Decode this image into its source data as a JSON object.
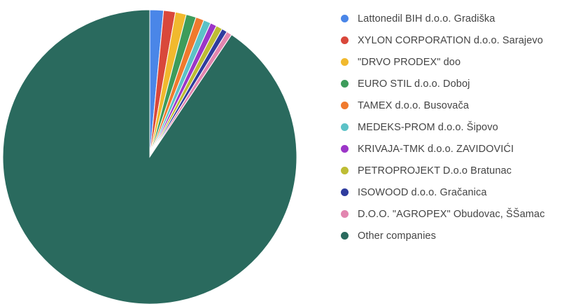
{
  "chart_data": {
    "type": "pie",
    "title": "",
    "legend_position": "right",
    "slices": [
      {
        "label": "Lattonedil BIH d.o.o. Gradiška",
        "value": 1.5,
        "color": "#4A86E8"
      },
      {
        "label": "XYLON CORPORATION d.o.o. Sarajevo",
        "value": 1.3,
        "color": "#D9483B"
      },
      {
        "label": "\"DRVO PRODEX\" doo",
        "value": 1.2,
        "color": "#F1B92E"
      },
      {
        "label": "EURO STIL d.o.o. Doboj",
        "value": 1.1,
        "color": "#3D9C5B"
      },
      {
        "label": "TAMEX d.o.o. Busovača",
        "value": 0.9,
        "color": "#F07A2E"
      },
      {
        "label": "MEDEKS-PROM d.o.o. Šipovo",
        "value": 0.8,
        "color": "#5CC2C7"
      },
      {
        "label": "KRIVAJA-TMK d.o.o. ZAVIDOVIĆI",
        "value": 0.7,
        "color": "#9C36C8"
      },
      {
        "label": "PETROPROJEKT D.o.o Bratunac",
        "value": 0.7,
        "color": "#BEBD34"
      },
      {
        "label": "ISOWOOD d.o.o. Gračanica",
        "value": 0.6,
        "color": "#2F3C9E"
      },
      {
        "label": "D.O.O. \"AGROPEX\" Obudovac, ŠŠamac",
        "value": 0.6,
        "color": "#E285AF"
      },
      {
        "label": "Other companies",
        "value": 90.6,
        "color": "#2A6A5E"
      }
    ]
  }
}
